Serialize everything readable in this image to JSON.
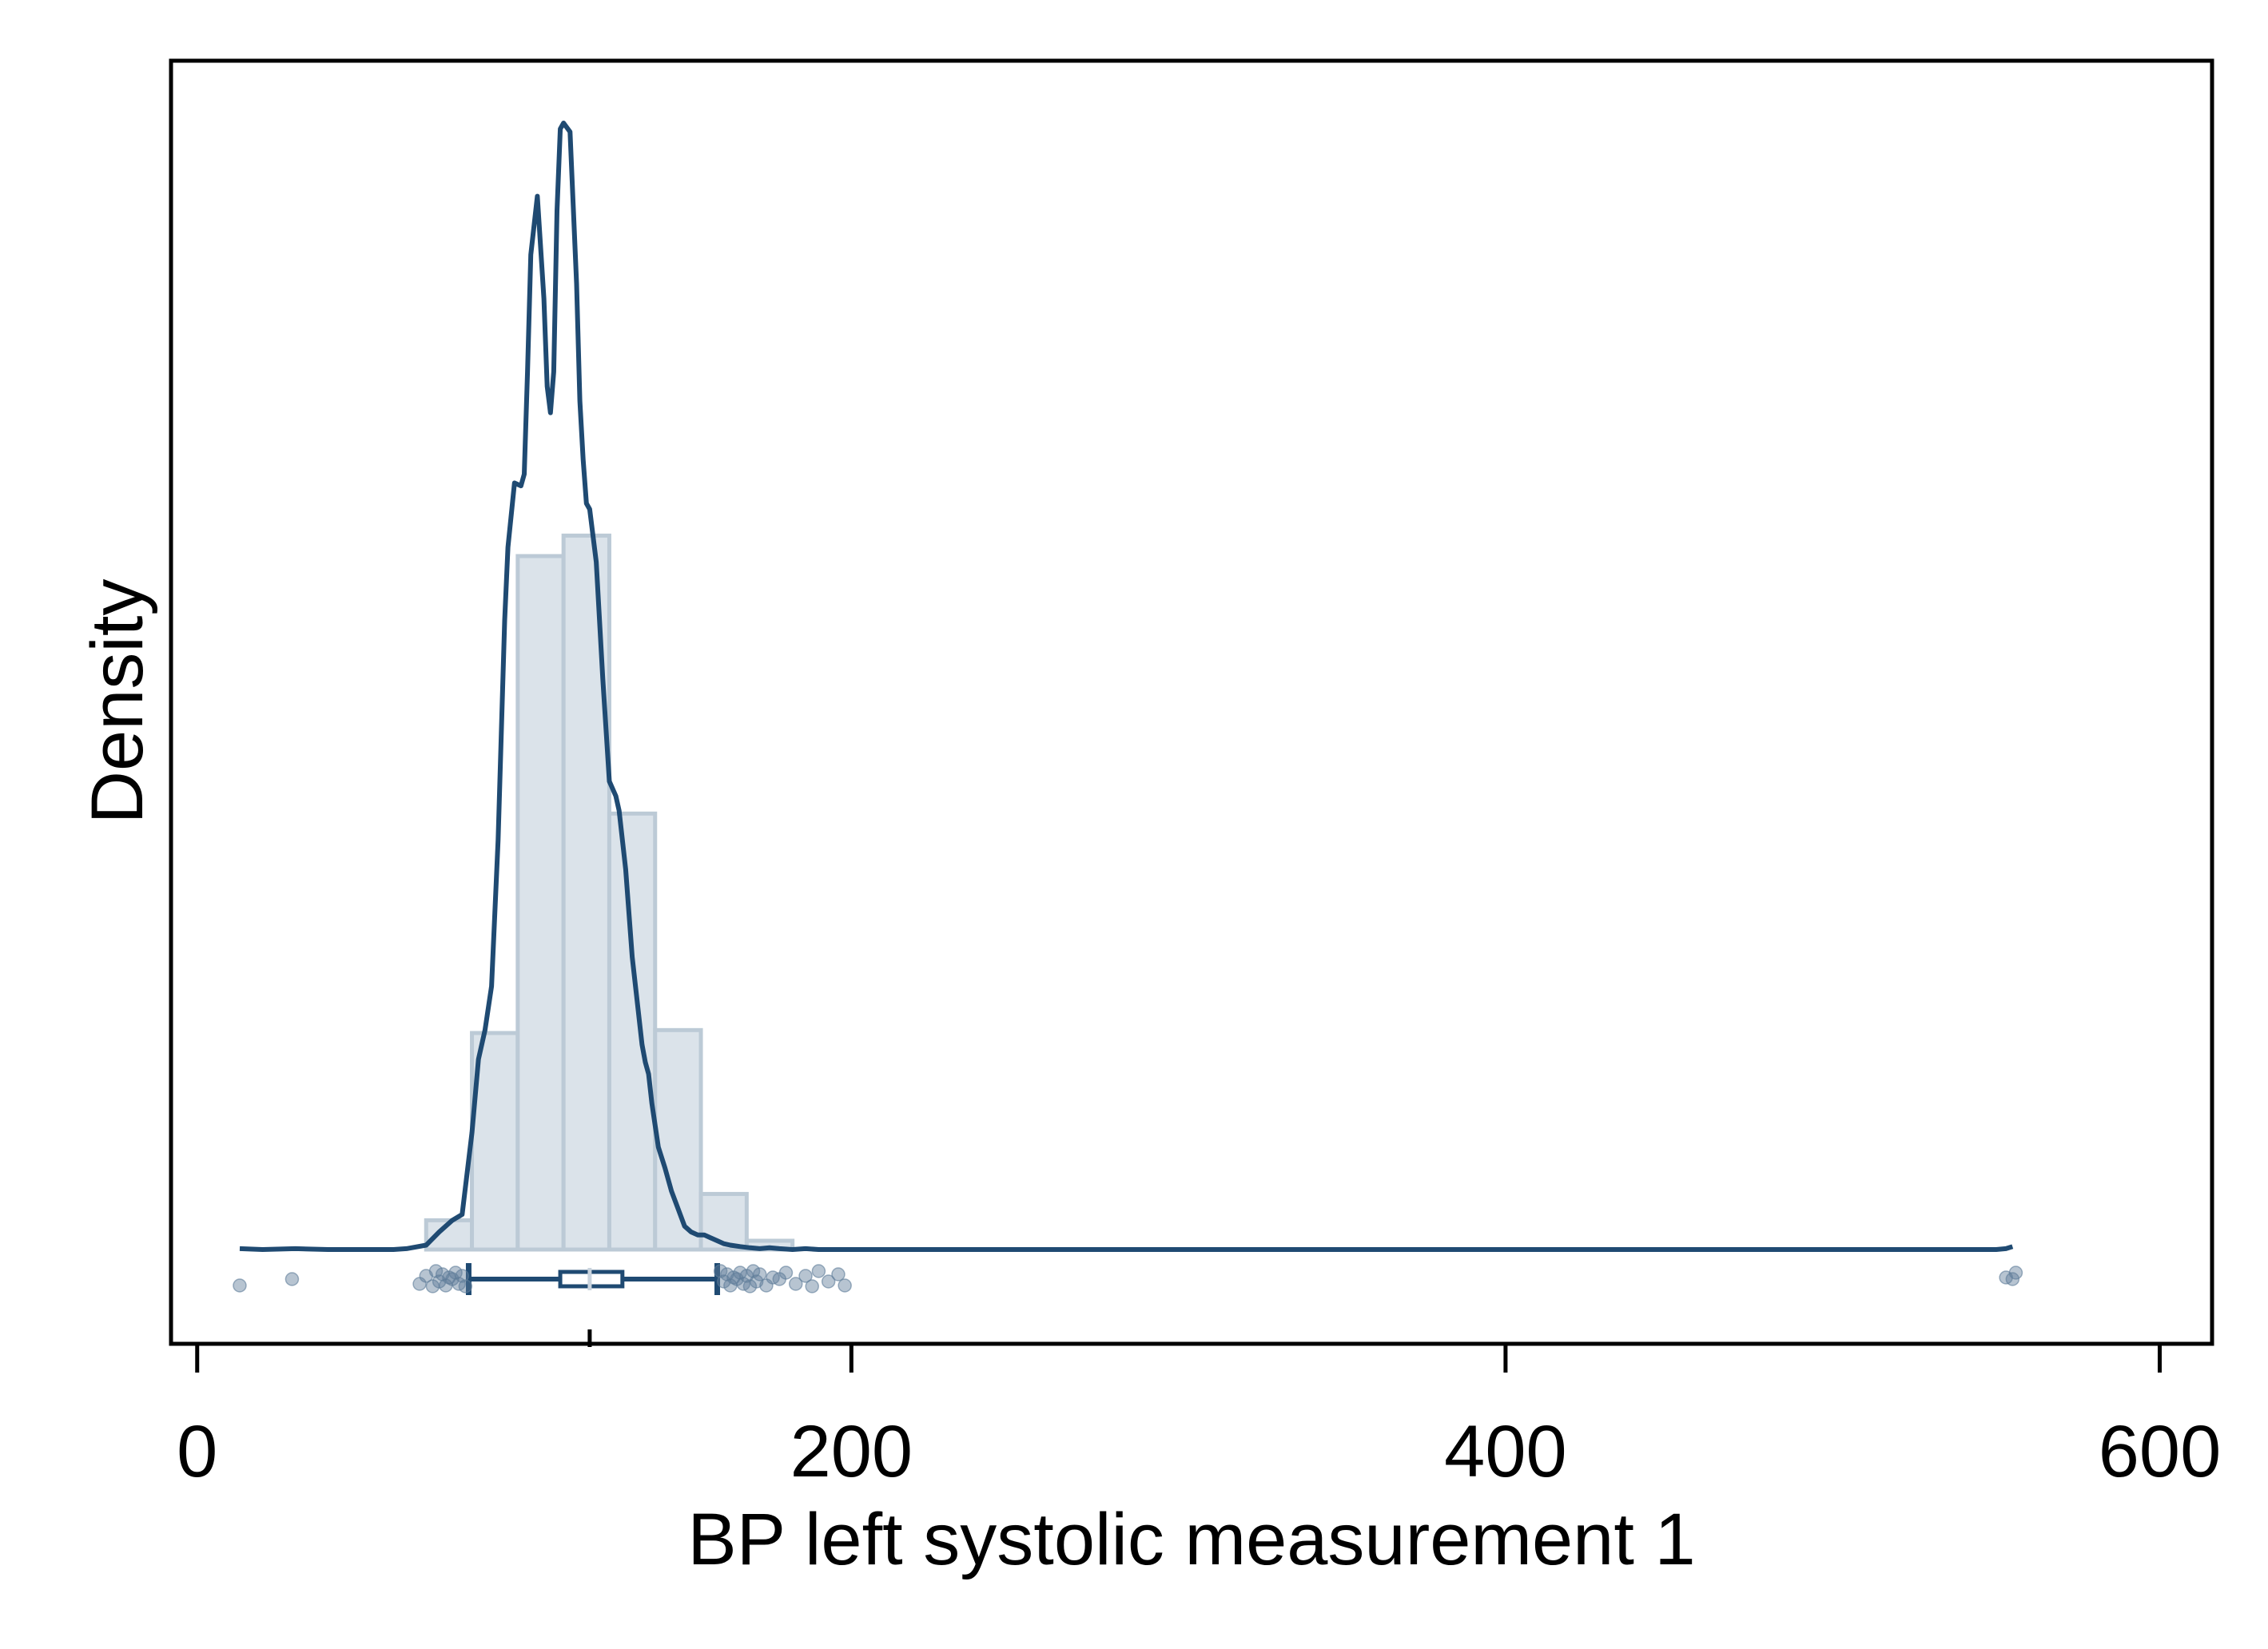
{
  "chart_data": {
    "type": "histogram",
    "xlabel": "BP left systolic measurement 1",
    "ylabel": "Density",
    "xlim": [
      -8,
      616
    ],
    "x_ticks": [
      0,
      200,
      400,
      600
    ],
    "y_ticks": [],
    "grid": false,
    "legend": "none",
    "histogram": {
      "bin_width": 14,
      "bins": [
        {
          "x0": 70,
          "x1": 84,
          "density": 0.001
        },
        {
          "x0": 84,
          "x1": 98,
          "density": 0.0074
        },
        {
          "x0": 98,
          "x1": 112,
          "density": 0.0237
        },
        {
          "x0": 112,
          "x1": 126,
          "density": 0.0244
        },
        {
          "x0": 126,
          "x1": 140,
          "density": 0.0149
        },
        {
          "x0": 140,
          "x1": 154,
          "density": 0.0075
        },
        {
          "x0": 154,
          "x1": 168,
          "density": 0.0019
        },
        {
          "x0": 168,
          "x1": 182,
          "density": 0.0003
        }
      ]
    },
    "density_curve": {
      "x": [
        13,
        20,
        30,
        40,
        50,
        60,
        64,
        70,
        74,
        78,
        81,
        84,
        86,
        88,
        90,
        92,
        94,
        95,
        97,
        99,
        100,
        101,
        102,
        104,
        106,
        107,
        108,
        109,
        110,
        111,
        112,
        114,
        116,
        117,
        118,
        119,
        120,
        122,
        124,
        126,
        128,
        129,
        131,
        133,
        135,
        136,
        137,
        138,
        139,
        141,
        143,
        145,
        147,
        149,
        151,
        153,
        155,
        157,
        159,
        161,
        163,
        166,
        169,
        172,
        175,
        178,
        182,
        186,
        190,
        195,
        200,
        205,
        210,
        250,
        300,
        400,
        500,
        540,
        550,
        553,
        555
      ],
      "y": [
        3e-05,
        0,
        3e-05,
        0,
        0,
        0,
        3e-05,
        0.00015,
        0.0006,
        0.001,
        0.0012,
        0.004,
        0.0065,
        0.0075,
        0.009,
        0.014,
        0.0215,
        0.024,
        0.0262,
        0.0261,
        0.0265,
        0.03,
        0.034,
        0.036,
        0.0325,
        0.0295,
        0.0286,
        0.03,
        0.0355,
        0.0383,
        0.0385,
        0.0382,
        0.033,
        0.029,
        0.027,
        0.0255,
        0.0253,
        0.0235,
        0.0195,
        0.016,
        0.0155,
        0.015,
        0.013,
        0.01,
        0.008,
        0.007,
        0.0064,
        0.006,
        0.005,
        0.0035,
        0.0028,
        0.002,
        0.0014,
        0.0008,
        0.0006,
        0.0005,
        0.0005,
        0.0004,
        0.0003,
        0.0002,
        0.00015,
        0.0001,
        6e-05,
        3e-05,
        6e-05,
        3e-05,
        0,
        3e-05,
        0,
        0,
        0,
        0,
        0,
        0,
        0,
        0,
        0,
        0,
        0,
        3e-05,
        0.0001
      ]
    },
    "box_plot": {
      "whisker_low": 83,
      "q1": 111,
      "median": 120,
      "q3": 130,
      "whisker_high": 159
    },
    "points": [
      13,
      29,
      68,
      70,
      72,
      73,
      74,
      75,
      76,
      77,
      78,
      79,
      80,
      81,
      82,
      160,
      161,
      162,
      163,
      164,
      165,
      166,
      167,
      168,
      169,
      170,
      171,
      172,
      174,
      176,
      178,
      180,
      183,
      186,
      188,
      190,
      193,
      196,
      198,
      553,
      555,
      556
    ],
    "colors": {
      "curve": "#1f4a72",
      "box": "#1f4a72",
      "bar_fill": "#dbe3ea",
      "bar_stroke": "#bccad6",
      "points": "#5f7d9a"
    }
  }
}
